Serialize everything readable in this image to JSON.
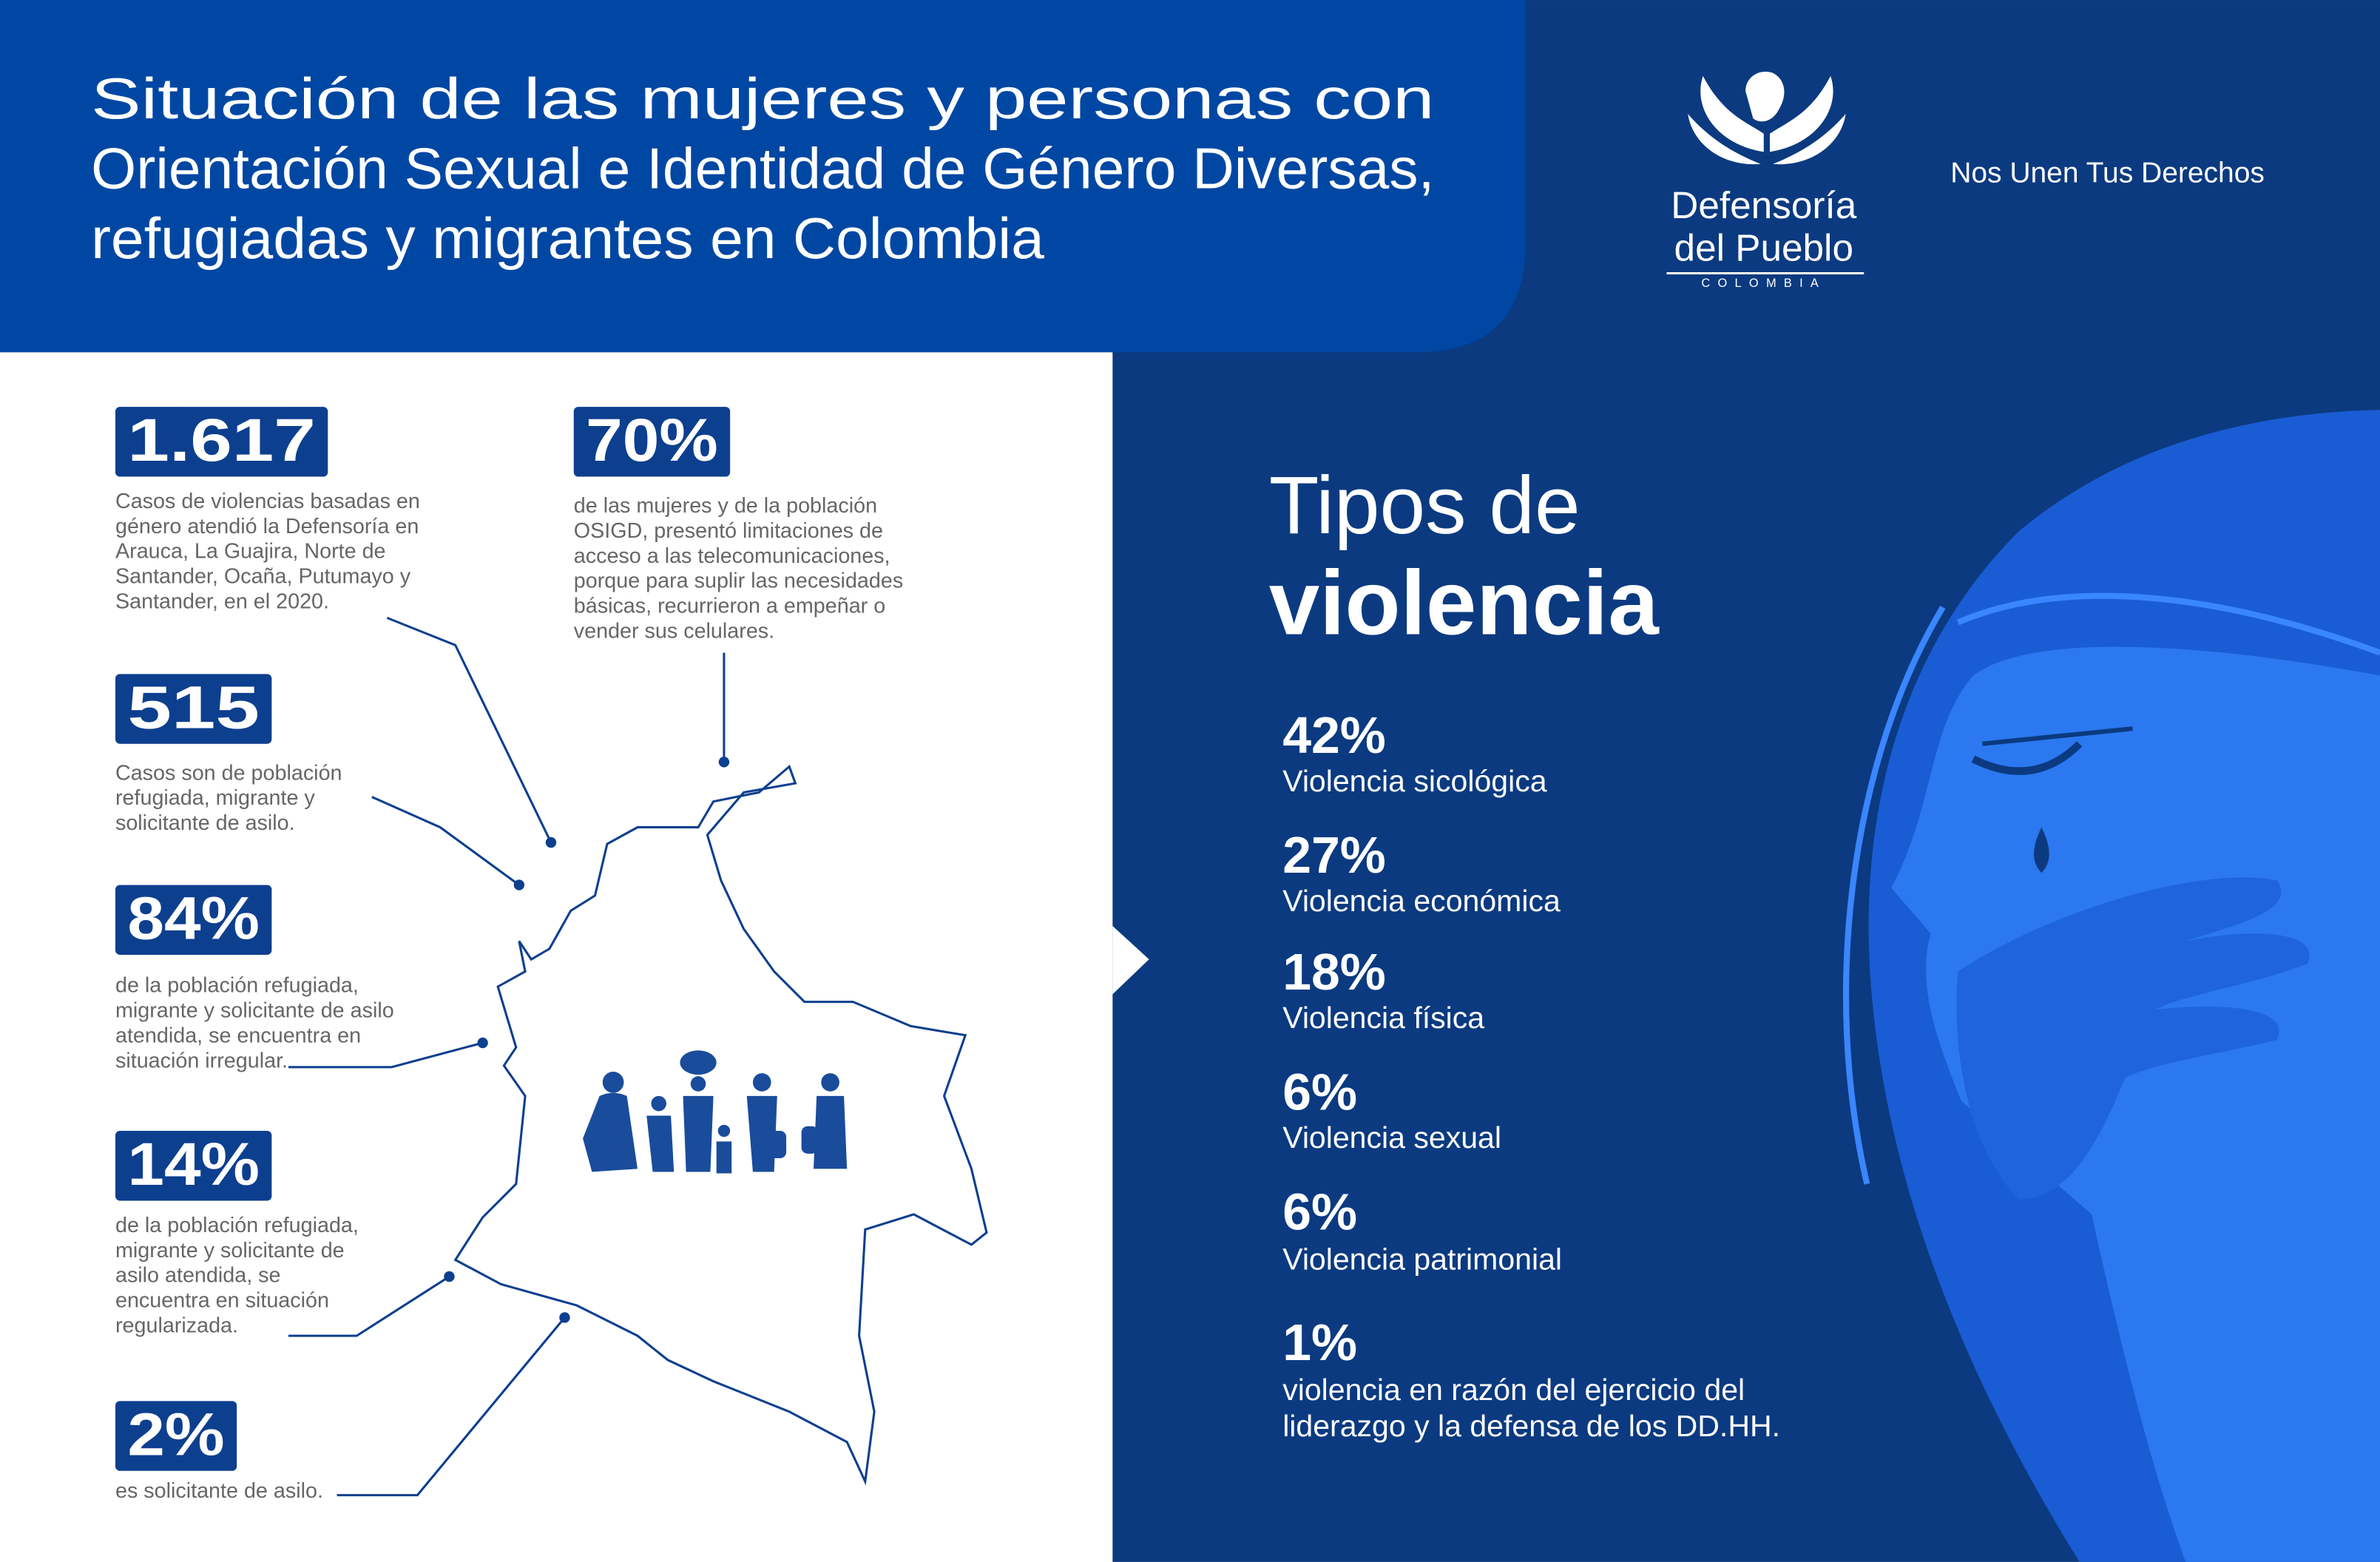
{
  "header": {
    "title": [
      "Situación de las mujeres y personas con",
      "Orientación Sexual e Identidad de Género Diversas,",
      "refugiadas y migrantes en Colombia"
    ],
    "logo": {
      "name": [
        "Defensoría",
        "del Pueblo"
      ],
      "country": "COLOMBIA"
    },
    "tagline": "Nos Unen Tus Derechos"
  },
  "stats": [
    {
      "value": "1.617",
      "description": [
        "Casos de violencias basadas en",
        "género atendió la Defensoría en",
        "Arauca, La Guajira, Norte de",
        "Santander, Ocaña, Putumayo y",
        "Santander, en el 2020."
      ]
    },
    {
      "value": "70%",
      "description": [
        "de las mujeres y de la población",
        "OSIGD, presentó limitaciones de",
        "acceso a las telecomunicaciones,",
        "porque para suplir las necesidades",
        "básicas, recurrieron a empeñar o",
        "vender sus celulares."
      ]
    },
    {
      "value": "515",
      "description": [
        "Casos son de población",
        "refugiada, migrante y",
        "solicitante de asilo."
      ]
    },
    {
      "value": "84%",
      "description": [
        "de la población refugiada,",
        "migrante y solicitante de asilo",
        "atendida, se encuentra en",
        "situación irregular."
      ]
    },
    {
      "value": "14%",
      "description": [
        "de la población refugiada,",
        "migrante y solicitante de",
        "asilo atendida, se",
        "encuentra en situación",
        "regularizada."
      ]
    },
    {
      "value": "2%",
      "description": [
        "es solicitante de asilo."
      ]
    }
  ],
  "violence": {
    "heading": [
      "Tipos de",
      "violencia"
    ],
    "items": [
      {
        "percent": "42%",
        "label": [
          "Violencia sicológica"
        ]
      },
      {
        "percent": "27%",
        "label": [
          "Violencia económica"
        ]
      },
      {
        "percent": "18%",
        "label": [
          "Violencia física"
        ]
      },
      {
        "percent": "6%",
        "label": [
          "Violencia sexual"
        ]
      },
      {
        "percent": "6%",
        "label": [
          "Violencia patrimonial"
        ]
      },
      {
        "percent": "1%",
        "label": [
          "violencia en razón del ejercicio del",
          "liderazgo y la defensa de los DD.HH."
        ]
      }
    ]
  }
}
